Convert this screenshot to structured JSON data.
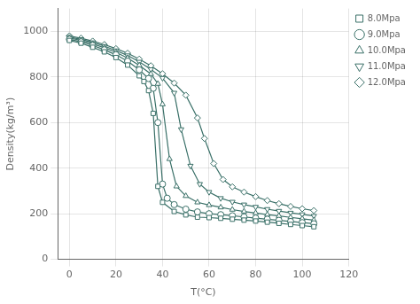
{
  "chart_data": {
    "type": "line",
    "xlabel": "T(°C)",
    "ylabel": "Density(kg/m³)",
    "xlim": [
      -5,
      120
    ],
    "ylim": [
      0,
      1100
    ],
    "xticks": [
      0,
      20,
      40,
      60,
      80,
      100,
      120
    ],
    "yticks": [
      0,
      200,
      400,
      600,
      800,
      1000
    ],
    "grid": true,
    "legend": "upper right",
    "series": [
      {
        "name": "8.0Mpa",
        "marker": "square",
        "color": "#3a7068",
        "x": [
          0,
          5,
          10,
          15,
          20,
          25,
          30,
          32,
          34,
          36,
          38,
          40,
          45,
          50,
          55,
          60,
          65,
          70,
          75,
          80,
          85,
          90,
          95,
          100,
          105
        ],
        "values": [
          960,
          948,
          930,
          910,
          885,
          852,
          805,
          780,
          740,
          640,
          320,
          250,
          210,
          195,
          185,
          183,
          180,
          176,
          172,
          168,
          163,
          158,
          153,
          148,
          143
        ]
      },
      {
        "name": "9.0Mpa",
        "marker": "circle",
        "color": "#3a7068",
        "x": [
          0,
          5,
          10,
          15,
          20,
          25,
          30,
          34,
          36,
          38,
          40,
          42,
          45,
          50,
          55,
          60,
          65,
          70,
          75,
          80,
          85,
          90,
          95,
          100,
          105
        ],
        "values": [
          965,
          954,
          938,
          919,
          897,
          869,
          831,
          793,
          750,
          600,
          330,
          268,
          240,
          220,
          208,
          200,
          196,
          191,
          186,
          181,
          176,
          171,
          166,
          161,
          156
        ]
      },
      {
        "name": "10.0Mpa",
        "marker": "triangle-up",
        "color": "#3a7068",
        "x": [
          0,
          5,
          10,
          15,
          20,
          25,
          30,
          35,
          38,
          40,
          43,
          46,
          50,
          55,
          60,
          65,
          70,
          75,
          80,
          85,
          90,
          95,
          100,
          105
        ],
        "values": [
          971,
          960,
          945,
          928,
          908,
          883,
          851,
          813,
          770,
          680,
          440,
          320,
          278,
          250,
          238,
          228,
          218,
          210,
          203,
          196,
          190,
          184,
          178,
          172
        ]
      },
      {
        "name": "11.0Mpa",
        "marker": "triangle-down",
        "color": "#3a7068",
        "x": [
          0,
          5,
          10,
          15,
          20,
          25,
          30,
          35,
          40,
          45,
          48,
          52,
          56,
          60,
          65,
          70,
          75,
          80,
          85,
          90,
          95,
          100,
          105
        ],
        "values": [
          975,
          965,
          951,
          935,
          916,
          894,
          866,
          833,
          795,
          730,
          570,
          410,
          330,
          295,
          268,
          252,
          240,
          230,
          220,
          212,
          204,
          197,
          190
        ]
      },
      {
        "name": "12.0Mpa",
        "marker": "diamond",
        "color": "#3a7068",
        "x": [
          0,
          5,
          10,
          15,
          20,
          25,
          30,
          35,
          40,
          45,
          50,
          55,
          58,
          62,
          66,
          70,
          75,
          80,
          85,
          90,
          95,
          100,
          105
        ],
        "values": [
          980,
          970,
          957,
          942,
          924,
          904,
          878,
          849,
          814,
          773,
          720,
          620,
          530,
          420,
          350,
          318,
          295,
          275,
          258,
          244,
          232,
          222,
          214
        ]
      }
    ]
  }
}
